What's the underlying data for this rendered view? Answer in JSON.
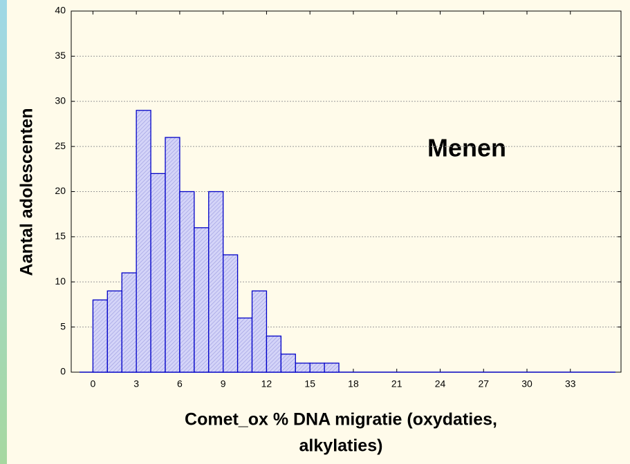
{
  "chart_data": {
    "type": "histogram",
    "ylabel": "Aantal adolescenten",
    "xlabel_lines": [
      "Comet_ox % DNA migratie (oxydaties,",
      "alkylaties)"
    ],
    "annotation": "Menen",
    "bins": [
      0,
      1,
      2,
      3,
      4,
      5,
      6,
      7,
      8,
      9,
      10,
      11,
      12,
      13,
      14,
      15,
      16,
      17
    ],
    "values": [
      8,
      9,
      11,
      29,
      22,
      26,
      20,
      16,
      20,
      13,
      6,
      9,
      4,
      2,
      1,
      1,
      1
    ],
    "color": "#c8c8f4",
    "xlim": [
      -1.5,
      36.5
    ],
    "xticks": [
      0,
      3,
      6,
      9,
      12,
      15,
      18,
      21,
      24,
      27,
      30,
      33
    ],
    "ylim": [
      0,
      40
    ],
    "yticks": [
      0,
      5,
      10,
      15,
      20,
      25,
      30,
      35,
      40
    ],
    "grid": true
  }
}
